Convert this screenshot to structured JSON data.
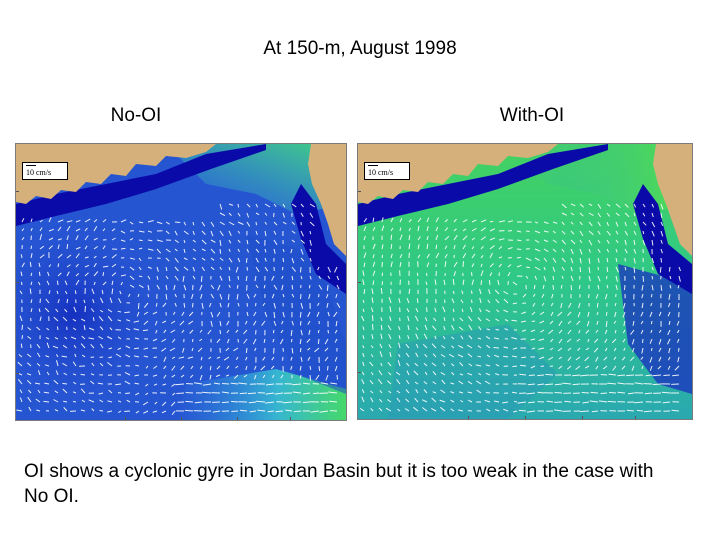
{
  "slide": {
    "title": "At 150-m, August 1998",
    "caption": "OI shows a cyclonic gyre in Jordan Basin but it is too weak in the case with No OI."
  },
  "panels": [
    {
      "title": "No-OI",
      "scale_label": "10 cm/s",
      "colors": {
        "deep": "#1836c8",
        "mid": "#2f63d8",
        "shelf": "#3a9fd8",
        "high": "#34d276",
        "land": "#d6b07a",
        "coast": "#0a0aa8",
        "vector": "#ffffff"
      }
    },
    {
      "title": "With-OI",
      "scale_label": "10 cm/s",
      "colors": {
        "deep": "#2aa6a0",
        "mid": "#25b890",
        "shelf": "#2fd07a",
        "high": "#4ce25a",
        "land": "#d6b07a",
        "coast": "#0a0aa8",
        "vector": "#ffffff"
      }
    }
  ]
}
